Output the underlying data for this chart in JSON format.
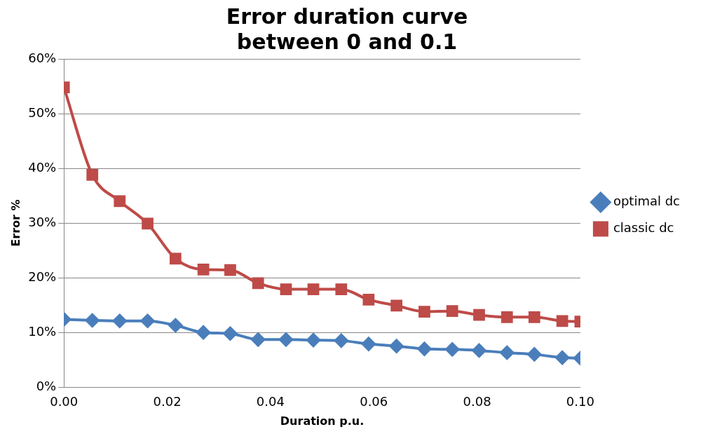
{
  "chart_data": {
    "type": "line",
    "title": "Error duration curve between 0 and 0.1",
    "xlabel": "Duration p.u.",
    "ylabel": "Error %",
    "x": [
      0,
      0.0055,
      0.0108,
      0.0162,
      0.0216,
      0.027,
      0.0322,
      0.0376,
      0.043,
      0.0483,
      0.0537,
      0.059,
      0.0644,
      0.0698,
      0.0752,
      0.0804,
      0.0858,
      0.0911,
      0.0965,
      0.1
    ],
    "series": [
      {
        "name": "optimal dc",
        "color": "#4a7ebb",
        "marker": "diamond",
        "values": [
          12.4,
          12.2,
          12.1,
          12.1,
          11.3,
          10.0,
          9.8,
          8.7,
          8.7,
          8.6,
          8.5,
          7.9,
          7.5,
          7.0,
          6.9,
          6.7,
          6.3,
          6.0,
          5.4,
          5.3
        ]
      },
      {
        "name": "classic dc",
        "color": "#be4b48",
        "marker": "square",
        "values": [
          54.8,
          38.8,
          34.0,
          29.9,
          23.5,
          21.5,
          21.4,
          19.0,
          17.9,
          17.9,
          17.9,
          16.0,
          14.9,
          13.8,
          13.9,
          13.2,
          12.8,
          12.8,
          12.1,
          12.0
        ]
      }
    ],
    "xlim": [
      0,
      0.1
    ],
    "xticks": [
      {
        "value": 0,
        "label": "0.00"
      },
      {
        "value": 0.02,
        "label": "0.02"
      },
      {
        "value": 0.04,
        "label": "0.04"
      },
      {
        "value": 0.06,
        "label": "0.06"
      },
      {
        "value": 0.08,
        "label": "0.08"
      },
      {
        "value": 0.1,
        "label": "0.10"
      }
    ],
    "ylim": [
      0,
      60
    ],
    "yticks": [
      {
        "value": 0,
        "label": "0%"
      },
      {
        "value": 10,
        "label": "10%"
      },
      {
        "value": 20,
        "label": "20%"
      },
      {
        "value": 30,
        "label": "30%"
      },
      {
        "value": 40,
        "label": "40%"
      },
      {
        "value": 50,
        "label": "50%"
      },
      {
        "value": 60,
        "label": "60%"
      }
    ],
    "grid": "y",
    "legend": "right",
    "line_style": "solid"
  }
}
